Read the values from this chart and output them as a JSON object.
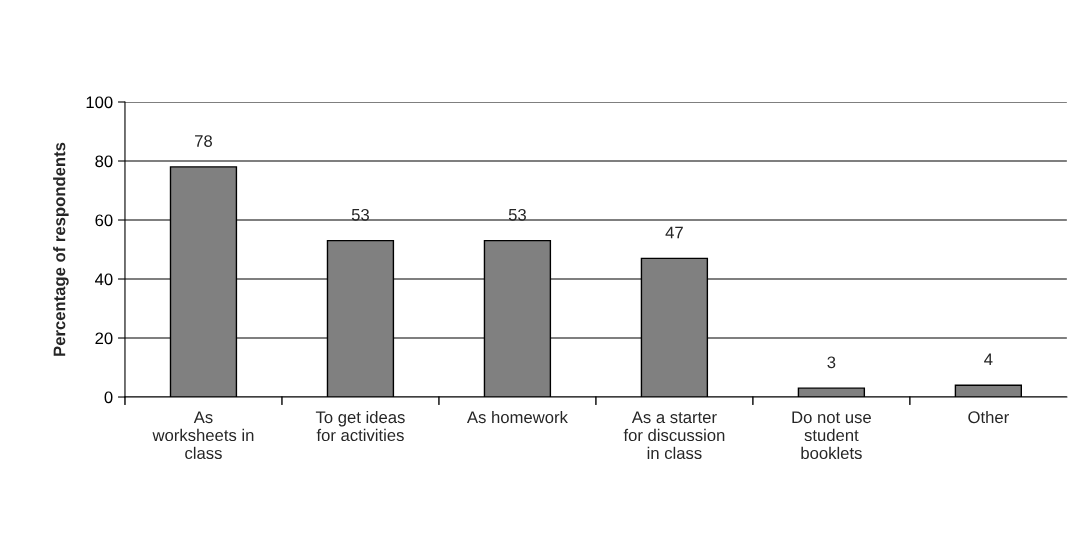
{
  "chart_data": {
    "type": "bar",
    "ylabel": "Percentage of respondents",
    "categories": [
      "As\nworksheets in\nclass",
      "To get ideas\nfor activities",
      "As homework",
      "As a starter\nfor discussion\nin class",
      "Do not use\nstudent\nbooklets",
      "Other"
    ],
    "values": [
      78,
      53,
      53,
      47,
      3,
      4
    ],
    "color": "#808080",
    "ylim": [
      0,
      100
    ],
    "yticks": [
      0,
      20,
      40,
      60,
      80,
      100
    ],
    "grid": "y",
    "data_labels": true
  }
}
